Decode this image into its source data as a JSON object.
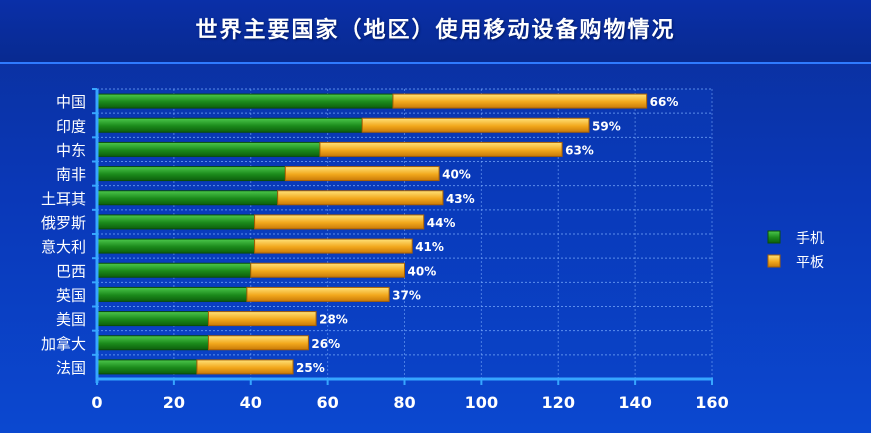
{
  "chart_data": {
    "type": "bar",
    "orientation": "horizontal",
    "stacked": true,
    "title": "世界主要国家（地区）使用移动设备购物情况",
    "categories": [
      "中国",
      "印度",
      "中东",
      "南非",
      "土耳其",
      "俄罗斯",
      "意大利",
      "巴西",
      "英国",
      "美国",
      "加拿大",
      "法国"
    ],
    "series": [
      {
        "name": "手机",
        "color": "#1f8f1f",
        "values": [
          77,
          69,
          58,
          49,
          47,
          41,
          41,
          40,
          39,
          29,
          29,
          26
        ],
        "labels": [
          "77%",
          "69%",
          "58%",
          "49%",
          "47%",
          "41%",
          "41%",
          "40%",
          "39%",
          "29%",
          "29%",
          "26%"
        ]
      },
      {
        "name": "平板",
        "color": "#f2a81c",
        "values": [
          66,
          59,
          63,
          40,
          43,
          44,
          41,
          40,
          37,
          28,
          26,
          25
        ],
        "labels": [
          "66%",
          "59%",
          "63%",
          "40%",
          "43%",
          "44%",
          "41%",
          "40%",
          "37%",
          "28%",
          "26%",
          "25%"
        ]
      }
    ],
    "xlim": [
      0,
      160
    ],
    "xticks": [
      0,
      20,
      40,
      60,
      80,
      100,
      120,
      140,
      160
    ],
    "grid": true,
    "legend": "right"
  }
}
